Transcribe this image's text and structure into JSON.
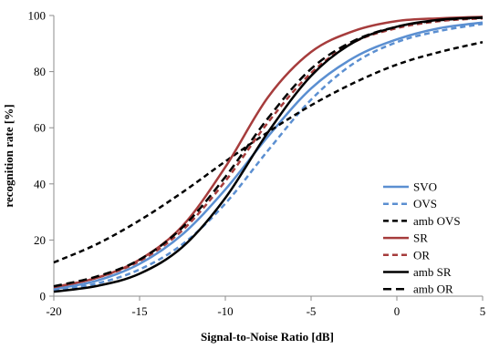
{
  "chart_data": {
    "type": "line",
    "title": "",
    "xlabel": "Signal-to-Noise Ratio [dB]",
    "ylabel": "recognition rate [%]",
    "xlim": [
      -20,
      5
    ],
    "ylim": [
      0,
      100
    ],
    "x_ticks": [
      -20,
      -15,
      -10,
      -5,
      0,
      5
    ],
    "x_tick_labels": [
      "-20",
      "-15",
      "-10",
      "-5",
      "0",
      "5"
    ],
    "y_ticks": [
      0,
      20,
      40,
      60,
      80,
      100
    ],
    "y_tick_labels": [
      "0",
      "20",
      "40",
      "60",
      "80",
      "100"
    ],
    "grid": false,
    "legend_position": "bottom-right",
    "x": [
      -20,
      -17.5,
      -15,
      -12.5,
      -10,
      -7.5,
      -5,
      -2.5,
      0,
      2.5,
      5
    ],
    "series": [
      {
        "name": "SVO",
        "color": "#5b8fd1",
        "dash": "solid",
        "values": [
          2.5,
          5.5,
          11.5,
          22,
          38,
          57,
          74,
          85,
          91.5,
          95.5,
          97.5
        ]
      },
      {
        "name": "OVS",
        "color": "#5b8fd1",
        "dash": "dashed",
        "values": [
          2.2,
          4.5,
          9.5,
          18.5,
          33,
          52,
          70,
          83,
          90.5,
          94.5,
          97
        ]
      },
      {
        "name": "amb OVS",
        "color": "#000000",
        "dash": "dashed",
        "values": [
          12,
          18.5,
          27,
          37,
          48,
          58.5,
          68,
          76,
          82.5,
          87,
          90.5
        ]
      },
      {
        "name": "SR",
        "color": "#a63c3c",
        "dash": "solid",
        "values": [
          3.2,
          6.5,
          13,
          25,
          46,
          71,
          87,
          94.5,
          98,
          99,
          99.5
        ]
      },
      {
        "name": "OR",
        "color": "#a63c3c",
        "dash": "dashed",
        "values": [
          3.2,
          6.5,
          12.5,
          23.5,
          41,
          62,
          79.5,
          90.5,
          95.5,
          98,
          99
        ]
      },
      {
        "name": "amb SR",
        "color": "#000000",
        "dash": "solid",
        "values": [
          1.6,
          3.6,
          8,
          17.5,
          35,
          58.5,
          78.5,
          90.5,
          96,
          98.5,
          99.3
        ]
      },
      {
        "name": "amb OR",
        "color": "#000000",
        "dash": "longdash",
        "values": [
          3.5,
          7,
          13,
          24.5,
          42.5,
          63.5,
          81,
          91,
          96,
          98.3,
          99.2
        ]
      }
    ]
  }
}
